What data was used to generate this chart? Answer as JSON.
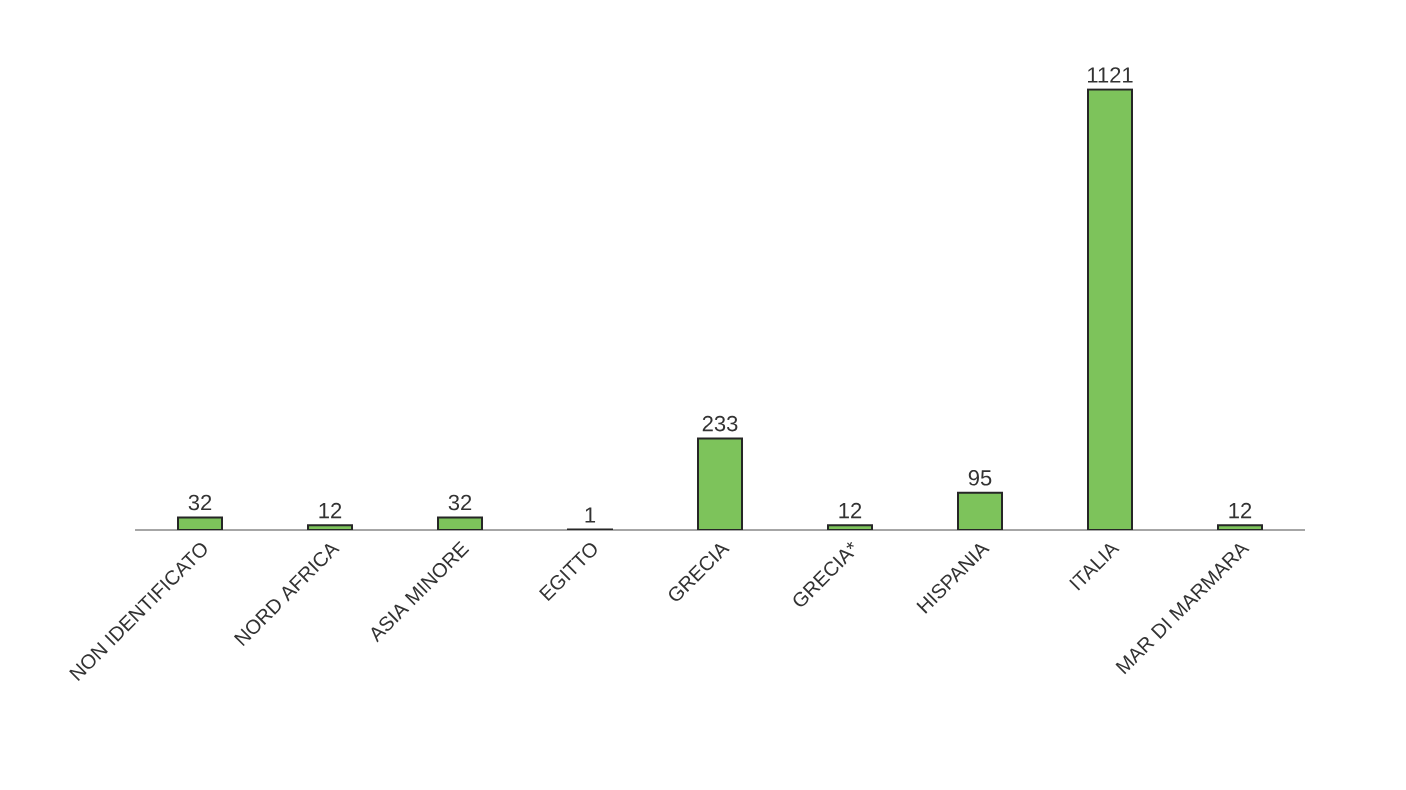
{
  "chart_data": {
    "type": "bar",
    "categories": [
      "NON IDENTIFICATO",
      "NORD AFRICA",
      "ASIA MINORE",
      "EGITTO",
      "GRECIA",
      "GRECIA*",
      "HISPANIA",
      "ITALIA",
      "MAR DI MARMARA"
    ],
    "values": [
      32,
      12,
      32,
      1,
      233,
      12,
      95,
      1121,
      12
    ],
    "color": "#7dc35b",
    "data_labels": true
  }
}
